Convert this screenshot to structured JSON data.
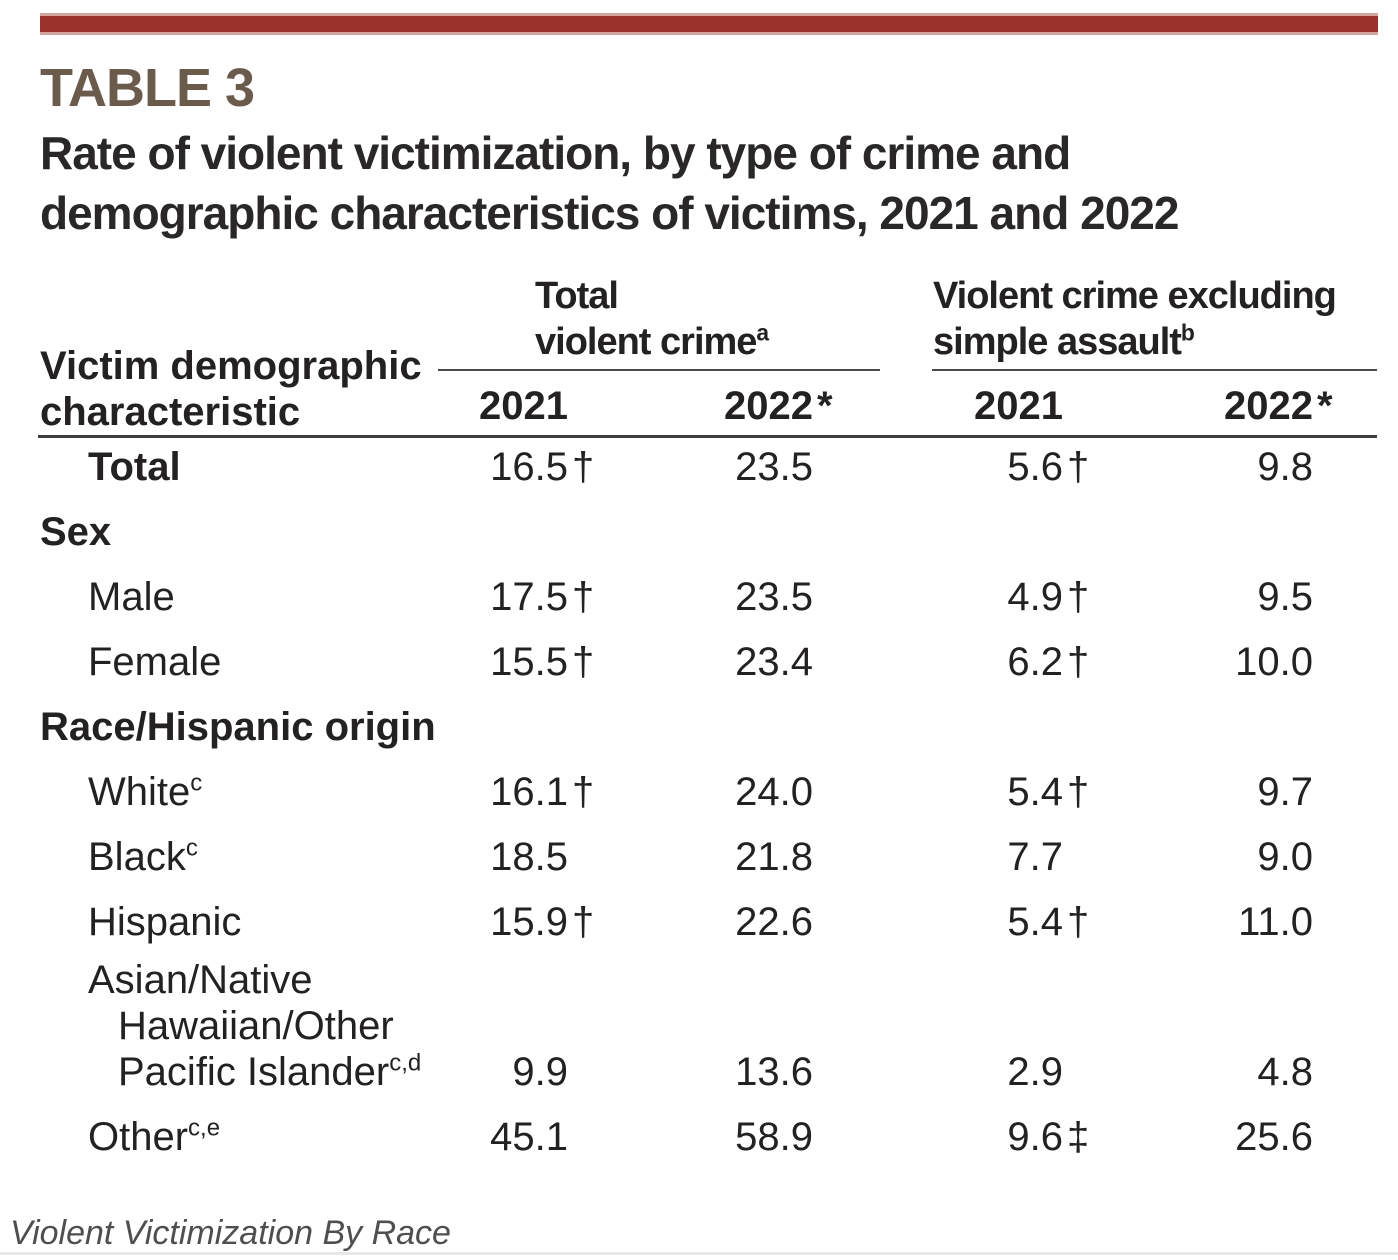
{
  "page": {
    "table_label": "TABLE 3",
    "title_lines": [
      "Rate of violent victimization, by type of crime and",
      "demographic characteristics of victims, 2021 and 2022"
    ],
    "caption": "Violent Victimization By Race"
  },
  "colors": {
    "accent_bar": "#9a332b",
    "accent_bar_edge": "#d4a49e",
    "table_label_text": "#6b5b4c",
    "body_text": "#242122",
    "group_rule": "#4a4a4a",
    "heavy_rule": "#3f3f3f",
    "caption_text": "#4f4f4f",
    "bottom_divider": "#e8e8e8"
  },
  "header": {
    "stub_lines": [
      "Victim demographic",
      "characteristic"
    ],
    "groups": [
      {
        "title_lines": [
          "Total",
          "violent crime"
        ],
        "footnote": "a"
      },
      {
        "title_lines": [
          "Violent crime excluding",
          "simple assault"
        ],
        "footnote": "b"
      }
    ],
    "year_columns": [
      {
        "label": "2021",
        "marker": ""
      },
      {
        "label": "2022",
        "marker": "*"
      },
      {
        "label": "2021",
        "marker": ""
      },
      {
        "label": "2022",
        "marker": "*"
      }
    ]
  },
  "rows": [
    {
      "kind": "data",
      "bold": true,
      "label": "Total",
      "sup": "",
      "values": [
        {
          "num": "16.5",
          "marker": "†"
        },
        {
          "num": "23.5",
          "marker": ""
        },
        {
          "num": "5.6",
          "marker": "†"
        },
        {
          "num": "9.8",
          "marker": ""
        }
      ]
    },
    {
      "kind": "section",
      "label": "Sex"
    },
    {
      "kind": "data",
      "bold": false,
      "label": "Male",
      "sup": "",
      "values": [
        {
          "num": "17.5",
          "marker": "†"
        },
        {
          "num": "23.5",
          "marker": ""
        },
        {
          "num": "4.9",
          "marker": "†"
        },
        {
          "num": "9.5",
          "marker": ""
        }
      ]
    },
    {
      "kind": "data",
      "bold": false,
      "label": "Female",
      "sup": "",
      "values": [
        {
          "num": "15.5",
          "marker": "†"
        },
        {
          "num": "23.4",
          "marker": ""
        },
        {
          "num": "6.2",
          "marker": "†"
        },
        {
          "num": "10.0",
          "marker": ""
        }
      ]
    },
    {
      "kind": "section",
      "label": "Race/Hispanic origin"
    },
    {
      "kind": "data",
      "bold": false,
      "label": "White",
      "sup": "c",
      "values": [
        {
          "num": "16.1",
          "marker": "†"
        },
        {
          "num": "24.0",
          "marker": ""
        },
        {
          "num": "5.4",
          "marker": "†"
        },
        {
          "num": "9.7",
          "marker": ""
        }
      ]
    },
    {
      "kind": "data",
      "bold": false,
      "label": "Black",
      "sup": "c",
      "values": [
        {
          "num": "18.5",
          "marker": ""
        },
        {
          "num": "21.8",
          "marker": ""
        },
        {
          "num": "7.7",
          "marker": ""
        },
        {
          "num": "9.0",
          "marker": ""
        }
      ]
    },
    {
      "kind": "data",
      "bold": false,
      "label": "Hispanic",
      "sup": "",
      "values": [
        {
          "num": "15.9",
          "marker": "†"
        },
        {
          "num": "22.6",
          "marker": ""
        },
        {
          "num": "5.4",
          "marker": "†"
        },
        {
          "num": "11.0",
          "marker": ""
        }
      ]
    },
    {
      "kind": "data-multiline",
      "bold": false,
      "label_lines": [
        "Asian/Native",
        "Hawaiian/Other",
        "Pacific Islander"
      ],
      "sup": "c,d",
      "values": [
        {
          "num": "9.9",
          "marker": ""
        },
        {
          "num": "13.6",
          "marker": ""
        },
        {
          "num": "2.9",
          "marker": ""
        },
        {
          "num": "4.8",
          "marker": ""
        }
      ]
    },
    {
      "kind": "data",
      "bold": false,
      "label": "Other",
      "sup": "c,e",
      "values": [
        {
          "num": "45.1",
          "marker": ""
        },
        {
          "num": "58.9",
          "marker": ""
        },
        {
          "num": "9.6",
          "marker": "‡"
        },
        {
          "num": "25.6",
          "marker": ""
        }
      ]
    }
  ],
  "chart_data": {
    "type": "table",
    "title": "TABLE 3. Rate of violent victimization, by type of crime and demographic characteristics of victims, 2021 and 2022",
    "caption": "Violent Victimization By Race",
    "column_groups": [
      {
        "group": "Total violent crime",
        "footnote": "a",
        "columns": [
          "2021",
          "2022*"
        ]
      },
      {
        "group": "Violent crime excluding simple assault",
        "footnote": "b",
        "columns": [
          "2021",
          "2022*"
        ]
      }
    ],
    "stub_header": "Victim demographic characteristic",
    "rows": [
      {
        "characteristic": "Total",
        "total_violent_2021": "16.5 †",
        "total_violent_2022": "23.5",
        "excl_simple_2021": "5.6 †",
        "excl_simple_2022": "9.8"
      },
      {
        "characteristic": "Sex",
        "section": true
      },
      {
        "characteristic": "Male",
        "total_violent_2021": "17.5 †",
        "total_violent_2022": "23.5",
        "excl_simple_2021": "4.9 †",
        "excl_simple_2022": "9.5"
      },
      {
        "characteristic": "Female",
        "total_violent_2021": "15.5 †",
        "total_violent_2022": "23.4",
        "excl_simple_2021": "6.2 †",
        "excl_simple_2022": "10.0"
      },
      {
        "characteristic": "Race/Hispanic origin",
        "section": true
      },
      {
        "characteristic": "White c",
        "total_violent_2021": "16.1 †",
        "total_violent_2022": "24.0",
        "excl_simple_2021": "5.4 †",
        "excl_simple_2022": "9.7"
      },
      {
        "characteristic": "Black c",
        "total_violent_2021": "18.5",
        "total_violent_2022": "21.8",
        "excl_simple_2021": "7.7",
        "excl_simple_2022": "9.0"
      },
      {
        "characteristic": "Hispanic",
        "total_violent_2021": "15.9 †",
        "total_violent_2022": "22.6",
        "excl_simple_2021": "5.4 †",
        "excl_simple_2022": "11.0"
      },
      {
        "characteristic": "Asian/Native Hawaiian/Other Pacific Islander c,d",
        "total_violent_2021": "9.9",
        "total_violent_2022": "13.6",
        "excl_simple_2021": "2.9",
        "excl_simple_2022": "4.8"
      },
      {
        "characteristic": "Other c,e",
        "total_violent_2021": "45.1",
        "total_violent_2022": "58.9",
        "excl_simple_2021": "9.6 ‡",
        "excl_simple_2022": "25.6"
      }
    ],
    "markers_visible": [
      "†",
      "‡",
      "*",
      "a",
      "b",
      "c",
      "d",
      "e"
    ]
  }
}
